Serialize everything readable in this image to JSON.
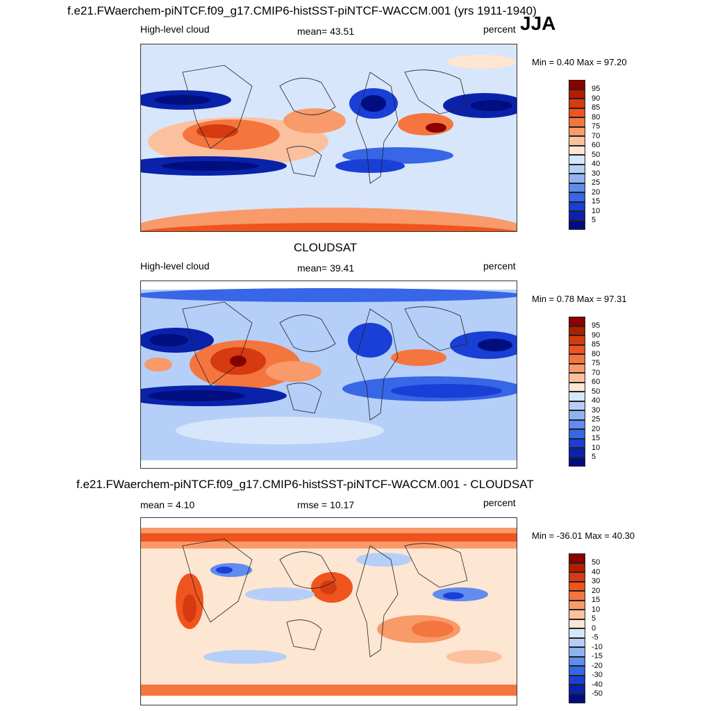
{
  "season": "JJA",
  "panels": [
    {
      "title": "f.e21.FWaerchem-piNTCF.f09_g17.CMIP6-histSST-piNTCF-WACCM.001 (yrs 1911-1940)",
      "left_label": "High-level cloud",
      "center_label": "mean=  43.51",
      "right_label": "percent",
      "minmax": "Min =   0.40 Max =  97.20",
      "colorbar": {
        "labels": [
          "95",
          "90",
          "85",
          "80",
          "75",
          "70",
          "60",
          "50",
          "40",
          "30",
          "25",
          "20",
          "15",
          "10",
          "5"
        ],
        "colors": [
          "#8b0000",
          "#b01e00",
          "#d63a10",
          "#f0541e",
          "#f5753e",
          "#f89a6a",
          "#fbc19e",
          "#fde6d2",
          "#d7e6fb",
          "#b5cff8",
          "#8fb3f2",
          "#5f8ced",
          "#3766e6",
          "#1a3fd6",
          "#0a22aa",
          "#000e80"
        ]
      },
      "min": 0.4,
      "max": 97.2
    },
    {
      "title": "CLOUDSAT",
      "left_label": "High-level cloud",
      "center_label": "mean=  39.41",
      "right_label": "percent",
      "minmax": "Min =   0.78 Max =  97.31",
      "colorbar": {
        "labels": [
          "95",
          "90",
          "85",
          "80",
          "75",
          "70",
          "60",
          "50",
          "40",
          "30",
          "25",
          "20",
          "15",
          "10",
          "5"
        ],
        "colors": [
          "#8b0000",
          "#b01e00",
          "#d63a10",
          "#f0541e",
          "#f5753e",
          "#f89a6a",
          "#fbc19e",
          "#fde6d2",
          "#d7e6fb",
          "#b5cff8",
          "#8fb3f2",
          "#5f8ced",
          "#3766e6",
          "#1a3fd6",
          "#0a22aa",
          "#000e80"
        ]
      },
      "min": 0.78,
      "max": 97.31
    },
    {
      "title": "f.e21.FWaerchem-piNTCF.f09_g17.CMIP6-histSST-piNTCF-WACCM.001 - CLOUDSAT",
      "left_label": "mean =   4.10",
      "center_label": "rmse =  10.17",
      "right_label": "percent",
      "minmax": "Min = -36.01 Max =  40.30",
      "colorbar": {
        "labels": [
          "50",
          "40",
          "30",
          "20",
          "15",
          "10",
          "5",
          "0",
          "-5",
          "-10",
          "-15",
          "-20",
          "-30",
          "-40",
          "-50"
        ],
        "colors": [
          "#8b0000",
          "#b01e00",
          "#d63a10",
          "#f0541e",
          "#f5753e",
          "#f89a6a",
          "#fbc19e",
          "#fde6d2",
          "#d7e6fb",
          "#b5cff8",
          "#8fb3f2",
          "#5f8ced",
          "#3766e6",
          "#1a3fd6",
          "#0a22aa",
          "#000e80"
        ]
      },
      "min": -36.01,
      "max": 40.3
    }
  ]
}
